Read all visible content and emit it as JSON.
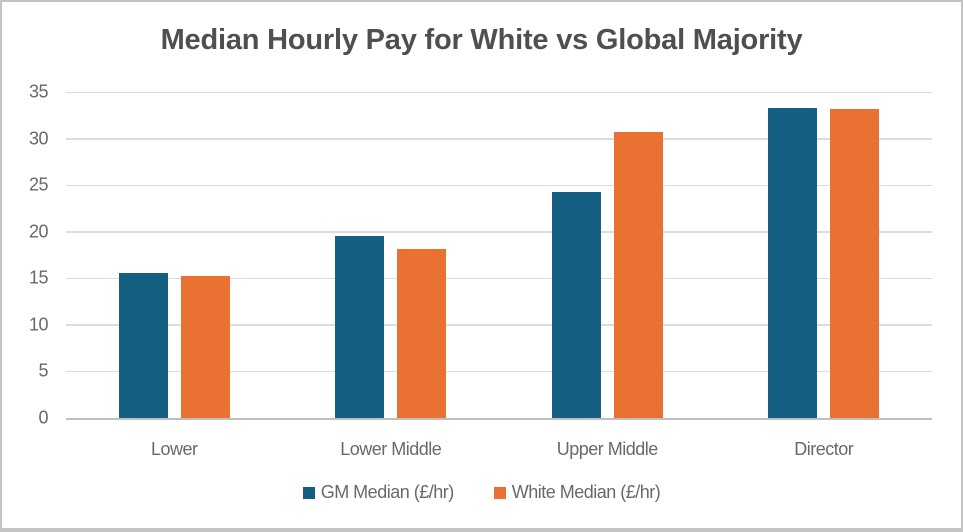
{
  "chart_data": {
    "type": "bar",
    "title": "Median Hourly Pay for White vs Global Majority",
    "categories": [
      "Lower",
      "Lower Middle",
      "Upper Middle",
      "Director"
    ],
    "series": [
      {
        "name": "GM Median (£/hr)",
        "color": "#156082",
        "values": [
          15.6,
          19.5,
          24.3,
          33.3
        ]
      },
      {
        "name": "White Median (£/hr)",
        "color": "#E97132",
        "values": [
          15.2,
          18.1,
          30.7,
          33.2
        ]
      }
    ],
    "xlabel": "",
    "ylabel": "",
    "ylim": [
      0,
      35
    ],
    "yticks": [
      0,
      5,
      10,
      15,
      20,
      25,
      30,
      35
    ],
    "grid": true,
    "legend_position": "bottom"
  },
  "colors": {
    "gridline": "#DCDCDC",
    "axis_line": "#BFBFBF",
    "title_text": "#4F4F4F",
    "tick_label_text": "#696969",
    "frame_border": "#C4C4C4",
    "background": "#FFFFFF"
  }
}
